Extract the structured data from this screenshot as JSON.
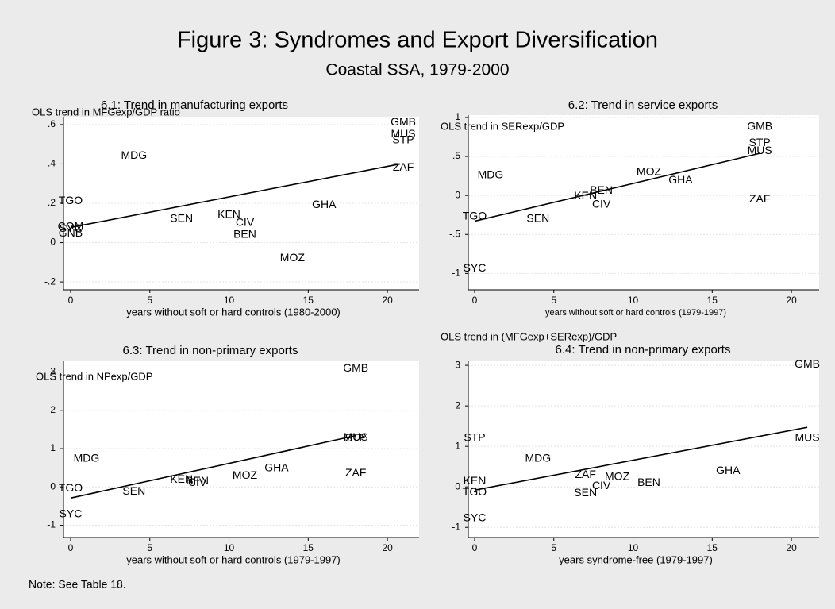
{
  "title": "Figure 3: Syndromes and Export Diversification",
  "subtitle": "Coastal SSA, 1979-2000",
  "note": "Note: See Table 18.",
  "chart_data": [
    {
      "type": "scatter",
      "title": "6.1: Trend in manufacturing exports",
      "y_label": "OLS trend in MFGexp/GDP ratio",
      "x_label": "years without soft or hard controls (1980-2000)",
      "labels": [
        "MDG",
        "TGO",
        "COM",
        "SYC",
        "GNB",
        "SEN",
        "KEN",
        "CIV",
        "BEN",
        "MOZ",
        "GHA",
        "GMB",
        "MUS",
        "STP",
        "ZAF"
      ],
      "x": [
        4,
        0,
        0,
        0,
        0,
        7,
        10,
        11,
        11,
        14,
        16,
        21,
        21,
        21,
        21
      ],
      "y": [
        0.44,
        0.21,
        0.08,
        0.07,
        0.045,
        0.12,
        0.14,
        0.1,
        0.04,
        -0.08,
        0.19,
        0.61,
        0.55,
        0.52,
        0.38
      ],
      "trend": {
        "x": [
          0,
          20.8
        ],
        "y": [
          0.077,
          0.4
        ]
      },
      "xlim": [
        -0.45,
        22
      ],
      "ylim": [
        -0.24,
        0.64
      ],
      "xticks": [
        0,
        5,
        10,
        15,
        20
      ],
      "yticks": [
        {
          "value": 0.6,
          "label": ".6"
        },
        {
          "value": 0.4,
          "label": ".4"
        },
        {
          "value": 0.2,
          "label": ".2"
        },
        0,
        {
          "value": -0.2,
          "label": "-.2"
        }
      ]
    },
    {
      "type": "scatter",
      "title": "6.2: Trend in service exports",
      "y_label": "OLS trend in SERexp/GDP",
      "x_label": "years without soft or hard controls (1979-1997)",
      "labels": [
        "MDG",
        "TGO",
        "SEN",
        "KEN",
        "BEN",
        "CIV",
        "MOZ",
        "GHA",
        "GMB",
        "STP",
        "MUS",
        "ZAF",
        "SYC"
      ],
      "x": [
        1,
        0,
        4,
        7,
        8,
        8,
        11,
        13,
        18,
        18,
        18,
        18,
        0
      ],
      "y": [
        0.26,
        -0.27,
        -0.3,
        -0.01,
        0.06,
        -0.12,
        0.3,
        0.19,
        0.88,
        0.67,
        0.57,
        -0.05,
        -0.94
      ],
      "trend": {
        "x": [
          0,
          18
        ],
        "y": [
          -0.33,
          0.54
        ]
      },
      "xlim": [
        -0.4,
        21.75
      ],
      "ylim": [
        -1.21,
        1.03
      ],
      "xticks": [
        0,
        5,
        10,
        15,
        20
      ],
      "yticks": [
        1,
        {
          "value": 0.5,
          "label": ".5"
        },
        0,
        {
          "value": -0.5,
          "label": "-.5"
        },
        -1
      ]
    },
    {
      "type": "scatter",
      "title": "6.3: Trend in non-primary exports",
      "y_label": "OLS trend in NPexp/GDP",
      "x_label": "years without soft or hard controls (1979-1997)",
      "labels": [
        "GMB",
        "MDG",
        "TGO",
        "SEN",
        "KEN",
        "CIV",
        "BEN",
        "SYC",
        "MOZ",
        "GHA",
        "MUS",
        "STP",
        "ZAF"
      ],
      "x": [
        18,
        1,
        0,
        4,
        7,
        8,
        8,
        0,
        11,
        13,
        18,
        18,
        18
      ],
      "y": [
        3.09,
        0.74,
        -0.04,
        -0.12,
        0.19,
        0.1,
        0.14,
        -0.72,
        0.29,
        0.49,
        1.28,
        1.26,
        0.35
      ],
      "trend": {
        "x": [
          0,
          18
        ],
        "y": [
          -0.29,
          1.34
        ]
      },
      "xlim": [
        -0.45,
        22
      ],
      "ylim": [
        -1.32,
        3.28
      ],
      "xticks": [
        0,
        5,
        10,
        15,
        20
      ],
      "yticks": [
        3,
        2,
        1,
        0,
        -1
      ]
    },
    {
      "type": "scatter",
      "title": "6.4: Trend in non-primary exports",
      "y_label": "OLS trend in (MFGexp+SERexp)/GDP",
      "x_label": "years syndrome-free (1979-1997)",
      "labels": [
        "GMB",
        "MUS",
        "STP",
        "MDG",
        "KEN",
        "TGO",
        "ZAF",
        "MOZ",
        "BEN",
        "CIV",
        "SEN",
        "GHA",
        "SYC"
      ],
      "x": [
        21,
        21,
        0,
        4,
        0,
        0,
        7,
        9,
        11,
        8,
        7,
        16,
        0
      ],
      "y": [
        3.02,
        1.2,
        1.2,
        0.69,
        0.14,
        -0.14,
        0.29,
        0.24,
        0.1,
        0.02,
        -0.16,
        0.39,
        -0.78
      ],
      "trend": {
        "x": [
          0,
          21
        ],
        "y": [
          -0.08,
          1.47
        ]
      },
      "xlim": [
        -0.4,
        21.75
      ],
      "ylim": [
        -1.25,
        3.1
      ],
      "xticks": [
        0,
        5,
        10,
        15,
        20
      ],
      "yticks": [
        3,
        2,
        1,
        0,
        -1
      ]
    }
  ]
}
